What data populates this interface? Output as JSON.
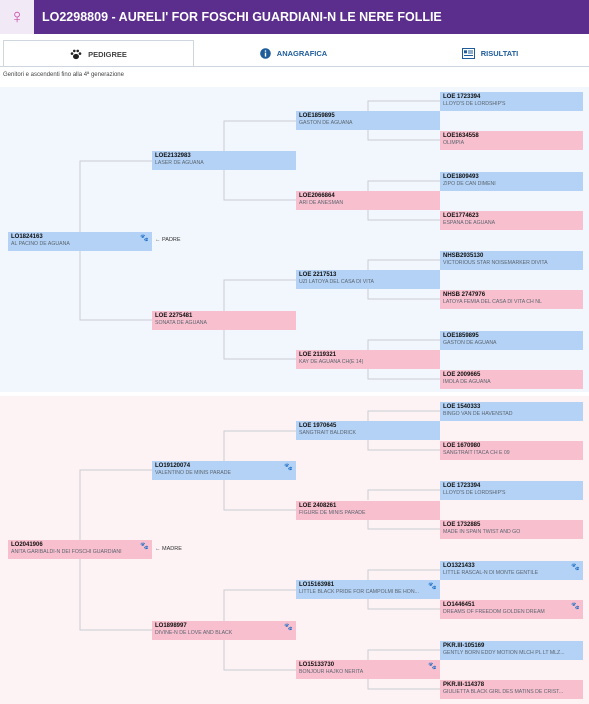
{
  "header": {
    "sex_icon": "female-icon",
    "title": "LO2298809 - AURELI' FOR FOSCHI GUARDIANI-N LE NERE FOLLIE",
    "bg_color": "#5b2d8c"
  },
  "tabs": [
    {
      "label": "PEDIGREE",
      "icon": "paw-icon",
      "active": true
    },
    {
      "label": "ANAGRAFICA",
      "icon": "info-icon",
      "active": false
    },
    {
      "label": "RISULTATI",
      "icon": "results-icon",
      "active": false
    }
  ],
  "subtitle": "Genitori e ascendenti fino alla 4ª generazione",
  "labels": {
    "padre": "PADRE",
    "madre": "MADRE"
  },
  "colors": {
    "male": "#b3d2f5",
    "female": "#f8bfce",
    "paw": "#5a2a8a"
  },
  "pedigree": {
    "sire": {
      "code": "LO1824163",
      "name": "AL PACINO DE AGUANA",
      "sex": "m",
      "paw": true
    },
    "sire_sire": {
      "code": "LOE2132983",
      "name": "LASER DE AGUANA",
      "sex": "m",
      "paw": false
    },
    "sire_dam": {
      "code": "LOE 2275481",
      "name": "SONATA DE AGUANA",
      "sex": "f",
      "paw": false
    },
    "sss": {
      "code": "LOE1859895",
      "name": "GASTON DE AGUANA",
      "sex": "m",
      "paw": false
    },
    "ssd": {
      "code": "LOE2066864",
      "name": "ARI DE ANESMAN",
      "sex": "f",
      "paw": false
    },
    "sds": {
      "code": "LOE 2217513",
      "name": "UZI LATOYA DEL CASA DI VITA",
      "sex": "m",
      "paw": false
    },
    "sdd": {
      "code": "LOE 2119321",
      "name": "KAY DE AGUANA CH(E 14)",
      "sex": "f",
      "paw": false
    },
    "ssss": {
      "code": "LOE 1723394",
      "name": "LLOYD'S DE LORDSHIP'S",
      "sex": "m",
      "paw": false
    },
    "sssd": {
      "code": "LOE1634558",
      "name": "OLIMPIA",
      "sex": "f",
      "paw": false
    },
    "ssds": {
      "code": "LOE1809493",
      "name": "ZIPO DE CAN DIMENI",
      "sex": "m",
      "paw": false
    },
    "ssdd": {
      "code": "LOE1774623",
      "name": "ESPANA DE AGUANA",
      "sex": "f",
      "paw": false
    },
    "sdss": {
      "code": "NHSB2935130",
      "name": "VICTORIOUS STAR NOISEMARKER DIVITA",
      "sex": "m",
      "paw": false
    },
    "sdsd": {
      "code": "NHSB 2747976",
      "name": "LATOYA FEMIA DEL CASA DI VITA CH NL",
      "sex": "f",
      "paw": false
    },
    "sdds": {
      "code": "LOE1859895",
      "name": "GASTON DE AGUANA",
      "sex": "m",
      "paw": false
    },
    "sddd": {
      "code": "LOE 2009665",
      "name": "IMOLA DE AGUANA",
      "sex": "f",
      "paw": false
    },
    "dam": {
      "code": "LO2041906",
      "name": "ANITA GARIBALDI-N DEI FOSCHI GUARDIANI",
      "sex": "f",
      "paw": true
    },
    "dam_sire": {
      "code": "LO19120074",
      "name": "VALENTINO DE MINIS PARADE",
      "sex": "m",
      "paw": true
    },
    "dam_dam": {
      "code": "LO1898997",
      "name": "DIVINE-N DE LOVE AND BLACK",
      "sex": "f",
      "paw": true
    },
    "dss": {
      "code": "LOE 1970645",
      "name": "SANGTRAIT BALDRICK",
      "sex": "m",
      "paw": false
    },
    "dsd": {
      "code": "LOE 2408261",
      "name": "FIGURE DE MINIS PARADE",
      "sex": "f",
      "paw": false
    },
    "dds": {
      "code": "LO15163981",
      "name": "LITTLE BLACK PRIDE FOR CAMPOLMI BE HON...",
      "sex": "m",
      "paw": true
    },
    "ddd": {
      "code": "LO15133730",
      "name": "BONJOUR HAJKO NERITA",
      "sex": "f",
      "paw": true
    },
    "dsss": {
      "code": "LOE 1540333",
      "name": "BINGO VAN DE HAVENSTAD",
      "sex": "m",
      "paw": false
    },
    "dssd": {
      "code": "LOE 1670980",
      "name": "SANGTRAIT ITACA CH E 09",
      "sex": "f",
      "paw": false
    },
    "dsds": {
      "code": "LOE 1723394",
      "name": "LLOYD'S DE LORDSHIP'S",
      "sex": "m",
      "paw": false
    },
    "dsdd": {
      "code": "LOE 1732885",
      "name": "MADE IN SPAIN TWIST AND GO",
      "sex": "f",
      "paw": false
    },
    "ddss": {
      "code": "LO1321433",
      "name": "LITTLE RASCAL-N DI MONTE GENTILE",
      "sex": "m",
      "paw": true
    },
    "ddsd": {
      "code": "LO1446451",
      "name": "DREAMS OF FREEDOM GOLDEN DREAM",
      "sex": "f",
      "paw": true
    },
    "ddds": {
      "code": "PKR.III-105169",
      "name": "GENTLY BORN EDDY MOTION MLCH PL LT MLZ...",
      "sex": "m",
      "paw": false
    },
    "dddd": {
      "code": "PKR.III-114378",
      "name": "GIULIETTA BLACK GIRL DES MATINS DE CRIST...",
      "sex": "f",
      "paw": false
    }
  }
}
